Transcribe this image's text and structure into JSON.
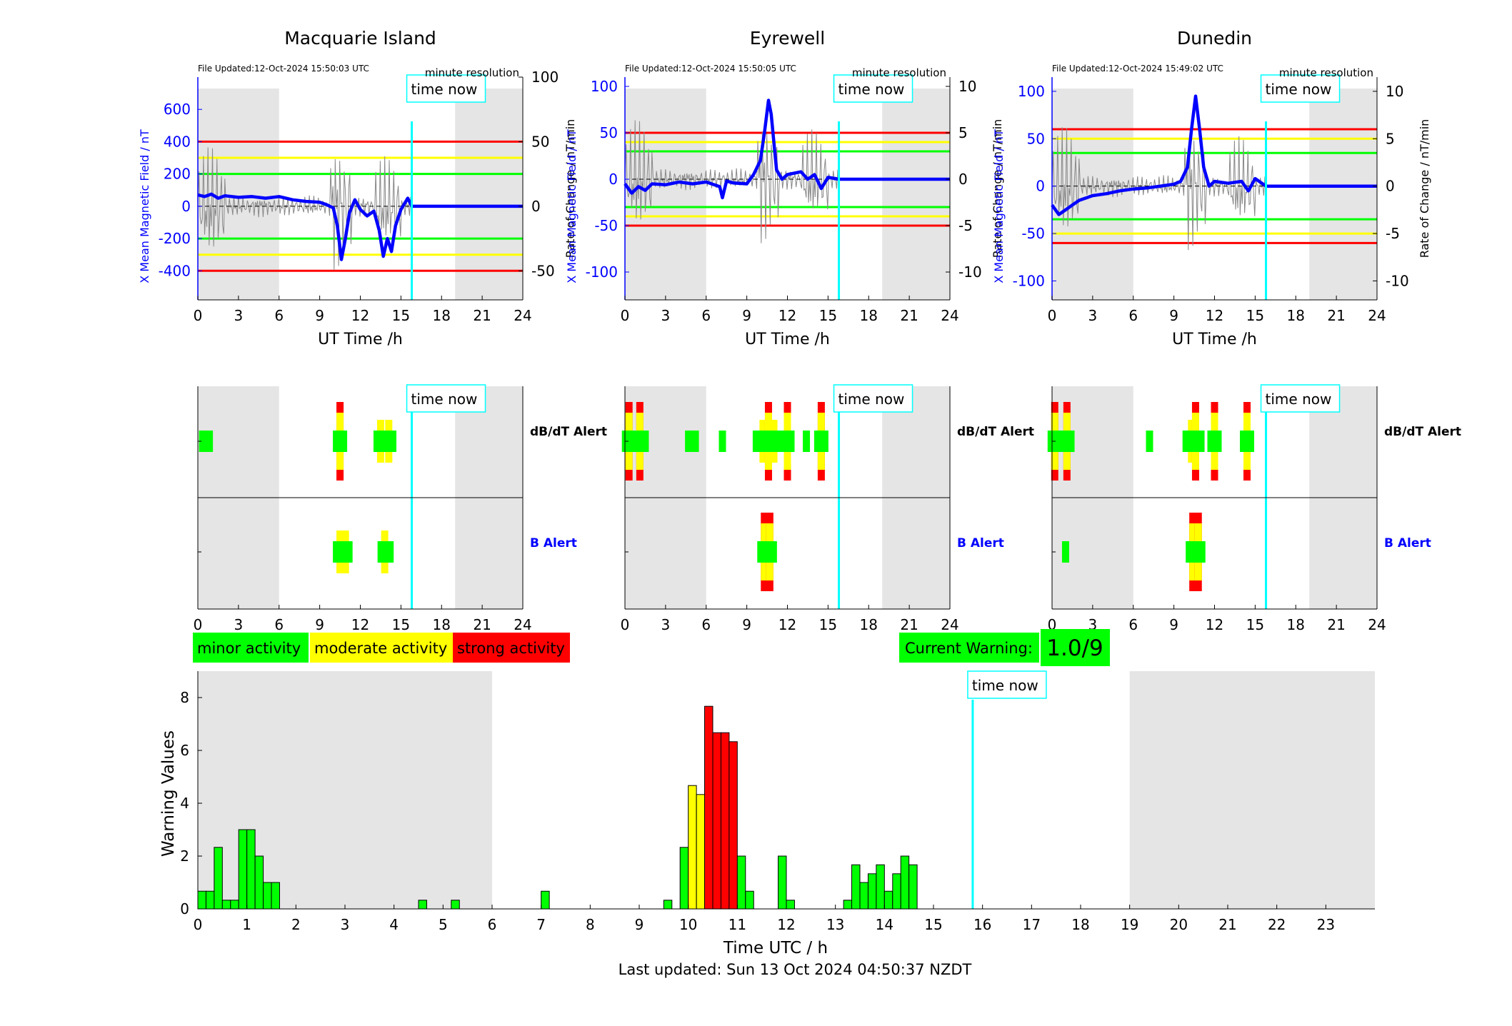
{
  "stations": [
    {
      "name": "Macquarie Island",
      "file_updated": "File Updated:12-Oct-2024 15:50:03 UTC",
      "resolution": "minute resolution",
      "left_ylabel": "X Mean Magnetic Field / nT",
      "right_ylabel": "Rate of Change / nT/min",
      "xlabel": "UT Time /h",
      "left_ylim": [
        -580,
        800
      ],
      "left_ticks": [
        -400,
        -200,
        0,
        200,
        400,
        600
      ],
      "right_ylim": [
        -72.5,
        100
      ],
      "right_ticks": [
        -50,
        0,
        50,
        100
      ],
      "thresholds": {
        "red": 400,
        "yellow": 300,
        "green": 200
      },
      "series_points": [
        [
          0,
          70
        ],
        [
          0.5,
          60
        ],
        [
          1,
          75
        ],
        [
          1.5,
          50
        ],
        [
          2,
          65
        ],
        [
          3,
          55
        ],
        [
          4,
          60
        ],
        [
          5,
          50
        ],
        [
          6,
          60
        ],
        [
          7,
          40
        ],
        [
          8,
          30
        ],
        [
          9,
          25
        ],
        [
          9.5,
          10
        ],
        [
          10,
          -10
        ],
        [
          10.3,
          -120
        ],
        [
          10.6,
          -330
        ],
        [
          10.9,
          -200
        ],
        [
          11.2,
          -40
        ],
        [
          11.6,
          40
        ],
        [
          12,
          -20
        ],
        [
          12.5,
          -60
        ],
        [
          13,
          -30
        ],
        [
          13.4,
          -150
        ],
        [
          13.7,
          -310
        ],
        [
          14,
          -200
        ],
        [
          14.3,
          -280
        ],
        [
          14.6,
          -120
        ],
        [
          15,
          -20
        ],
        [
          15.5,
          50
        ],
        [
          15.8,
          0
        ],
        [
          24,
          0
        ]
      ]
    },
    {
      "name": "Eyrewell",
      "file_updated": "File Updated:12-Oct-2024 15:50:05 UTC",
      "resolution": "minute resolution",
      "left_ylabel": "X Mean Magnetic Field / nT",
      "right_ylabel": "Rate of Change / nT/min",
      "xlabel": "UT Time /h",
      "left_ylim": [
        -130,
        110
      ],
      "left_ticks": [
        -100,
        -50,
        0,
        50,
        100
      ],
      "right_ylim": [
        -13,
        11
      ],
      "right_ticks": [
        -10,
        -5,
        0,
        5,
        10
      ],
      "thresholds": {
        "red": 50,
        "yellow": 40,
        "green": 30
      },
      "series_points": [
        [
          0,
          -5
        ],
        [
          0.5,
          -15
        ],
        [
          1,
          -8
        ],
        [
          1.5,
          -12
        ],
        [
          2,
          -5
        ],
        [
          3,
          -6
        ],
        [
          4,
          -3
        ],
        [
          5,
          -5
        ],
        [
          6,
          -3
        ],
        [
          7,
          -8
        ],
        [
          7.2,
          -20
        ],
        [
          7.5,
          -2
        ],
        [
          8,
          -4
        ],
        [
          9,
          -5
        ],
        [
          9.5,
          5
        ],
        [
          10,
          20
        ],
        [
          10.3,
          50
        ],
        [
          10.6,
          85
        ],
        [
          10.8,
          70
        ],
        [
          11,
          40
        ],
        [
          11.2,
          10
        ],
        [
          11.6,
          0
        ],
        [
          12,
          5
        ],
        [
          13,
          8
        ],
        [
          13.5,
          0
        ],
        [
          14,
          5
        ],
        [
          14.5,
          -10
        ],
        [
          15,
          2
        ],
        [
          15.8,
          0
        ],
        [
          24,
          0
        ]
      ]
    },
    {
      "name": "Dunedin",
      "file_updated": "File Updated:12-Oct-2024 15:49:02 UTC",
      "resolution": "minute resolution",
      "left_ylabel": "X Mean Magnetic Field / nT",
      "right_ylabel": "Rate of Change / nT/min",
      "xlabel": "UT Time /h",
      "left_ylim": [
        -120,
        115
      ],
      "left_ticks": [
        -100,
        -50,
        0,
        50,
        100
      ],
      "right_ylim": [
        -12,
        11.5
      ],
      "right_ticks": [
        -10,
        -5,
        0,
        5,
        10
      ],
      "thresholds": {
        "red": 60,
        "yellow": 50,
        "green": 35
      },
      "series_points": [
        [
          0,
          -20
        ],
        [
          0.5,
          -30
        ],
        [
          1,
          -25
        ],
        [
          1.5,
          -20
        ],
        [
          2,
          -15
        ],
        [
          3,
          -10
        ],
        [
          4,
          -8
        ],
        [
          5,
          -5
        ],
        [
          6,
          -3
        ],
        [
          7,
          -2
        ],
        [
          8,
          0
        ],
        [
          9,
          2
        ],
        [
          9.5,
          5
        ],
        [
          10,
          20
        ],
        [
          10.3,
          60
        ],
        [
          10.6,
          95
        ],
        [
          10.9,
          60
        ],
        [
          11.2,
          20
        ],
        [
          11.6,
          0
        ],
        [
          12,
          5
        ],
        [
          13,
          3
        ],
        [
          14,
          5
        ],
        [
          14.5,
          -5
        ],
        [
          15,
          8
        ],
        [
          15.8,
          0
        ],
        [
          24,
          0
        ]
      ]
    }
  ],
  "alert_panels": [
    {
      "dbdt_bars": [
        {
          "t": 0.35,
          "level": "green"
        },
        {
          "t": 0.85,
          "level": "green"
        },
        {
          "t": 10.5,
          "level": "red"
        },
        {
          "t": 13.5,
          "level": "yellow"
        },
        {
          "t": 13.8,
          "level": "green"
        },
        {
          "t": 14.1,
          "level": "yellow"
        },
        {
          "t": 14.4,
          "level": "green"
        }
      ],
      "b_bars": [
        {
          "t": 10.5,
          "level": "yellow"
        },
        {
          "t": 10.9,
          "level": "yellow"
        },
        {
          "t": 13.8,
          "level": "yellow"
        },
        {
          "t": 14.2,
          "level": "green"
        }
      ]
    },
    {
      "dbdt_bars": [
        {
          "t": 0.3,
          "level": "red"
        },
        {
          "t": 0.7,
          "level": "green"
        },
        {
          "t": 1.1,
          "level": "red"
        },
        {
          "t": 1.5,
          "level": "green"
        },
        {
          "t": 4.7,
          "level": "green"
        },
        {
          "t": 5.2,
          "level": "green"
        },
        {
          "t": 7.2,
          "level": "green"
        },
        {
          "t": 9.7,
          "level": "green"
        },
        {
          "t": 10.2,
          "level": "yellow"
        },
        {
          "t": 10.6,
          "level": "red"
        },
        {
          "t": 11.0,
          "level": "yellow"
        },
        {
          "t": 12.0,
          "level": "red"
        },
        {
          "t": 13.4,
          "level": "green"
        },
        {
          "t": 14.5,
          "level": "red"
        }
      ],
      "b_bars": [
        {
          "t": 10.3,
          "level": "red"
        },
        {
          "t": 10.7,
          "level": "red"
        }
      ]
    },
    {
      "dbdt_bars": [
        {
          "t": 0.2,
          "level": "red"
        },
        {
          "t": 0.6,
          "level": "green"
        },
        {
          "t": 1.1,
          "level": "red"
        },
        {
          "t": 1.4,
          "level": "green"
        },
        {
          "t": 7.2,
          "level": "green"
        },
        {
          "t": 9.9,
          "level": "green"
        },
        {
          "t": 10.3,
          "level": "yellow"
        },
        {
          "t": 10.6,
          "level": "red"
        },
        {
          "t": 11.0,
          "level": "green"
        },
        {
          "t": 12.0,
          "level": "red"
        },
        {
          "t": 14.4,
          "level": "red"
        }
      ],
      "b_bars": [
        {
          "t": 1.0,
          "level": "green"
        },
        {
          "t": 10.4,
          "level": "red"
        },
        {
          "t": 10.8,
          "level": "red"
        }
      ]
    }
  ],
  "alert_labels": {
    "dbdt": "dB/dT Alert",
    "b": "B Alert"
  },
  "time_now_label": "time now",
  "time_now_hours": 15.8,
  "night_shading": {
    "before": 6,
    "after": 19
  },
  "x_ticks": [
    0,
    3,
    6,
    9,
    12,
    15,
    18,
    21,
    24
  ],
  "legend": {
    "minor": "minor activity",
    "moderate": "moderate activity",
    "strong": "strong activity"
  },
  "current_warning": {
    "label": "Current Warning:",
    "value": "1.0/9"
  },
  "colors": {
    "green": "#00ff00",
    "yellow": "#ffff00",
    "red": "#ff0000",
    "cyan": "#00ffff",
    "blue": "#0000ff",
    "night": "#e5e5e5"
  },
  "chart_data": {
    "type": "bar",
    "xlabel": "Time UTC / h",
    "ylabel": "Warning Values",
    "ylim": [
      0,
      9
    ],
    "xlim": [
      0,
      24
    ],
    "y_ticks": [
      0,
      2,
      4,
      6,
      8
    ],
    "x_ticks": [
      0,
      1,
      2,
      3,
      4,
      5,
      6,
      7,
      8,
      9,
      10,
      11,
      12,
      13,
      14,
      15,
      16,
      17,
      18,
      19,
      20,
      21,
      22,
      23
    ],
    "bar_width_h": 0.1667,
    "bars": [
      {
        "t": 0.0,
        "v": 0.67,
        "level": "green"
      },
      {
        "t": 0.167,
        "v": 0.67,
        "level": "green"
      },
      {
        "t": 0.333,
        "v": 2.33,
        "level": "green"
      },
      {
        "t": 0.5,
        "v": 0.33,
        "level": "green"
      },
      {
        "t": 0.667,
        "v": 0.33,
        "level": "green"
      },
      {
        "t": 0.833,
        "v": 3.0,
        "level": "green"
      },
      {
        "t": 1.0,
        "v": 3.0,
        "level": "green"
      },
      {
        "t": 1.167,
        "v": 2.0,
        "level": "green"
      },
      {
        "t": 1.333,
        "v": 1.0,
        "level": "green"
      },
      {
        "t": 1.5,
        "v": 1.0,
        "level": "green"
      },
      {
        "t": 4.5,
        "v": 0.33,
        "level": "green"
      },
      {
        "t": 5.167,
        "v": 0.33,
        "level": "green"
      },
      {
        "t": 7.0,
        "v": 0.67,
        "level": "green"
      },
      {
        "t": 9.5,
        "v": 0.33,
        "level": "green"
      },
      {
        "t": 9.833,
        "v": 2.33,
        "level": "green"
      },
      {
        "t": 10.0,
        "v": 4.67,
        "level": "yellow"
      },
      {
        "t": 10.167,
        "v": 4.33,
        "level": "yellow"
      },
      {
        "t": 10.333,
        "v": 7.67,
        "level": "red"
      },
      {
        "t": 10.5,
        "v": 6.67,
        "level": "red"
      },
      {
        "t": 10.667,
        "v": 6.67,
        "level": "red"
      },
      {
        "t": 10.833,
        "v": 6.33,
        "level": "red"
      },
      {
        "t": 11.0,
        "v": 2.0,
        "level": "green"
      },
      {
        "t": 11.167,
        "v": 0.67,
        "level": "green"
      },
      {
        "t": 11.833,
        "v": 2.0,
        "level": "green"
      },
      {
        "t": 12.0,
        "v": 0.33,
        "level": "green"
      },
      {
        "t": 13.167,
        "v": 0.33,
        "level": "green"
      },
      {
        "t": 13.333,
        "v": 1.67,
        "level": "green"
      },
      {
        "t": 13.5,
        "v": 1.0,
        "level": "green"
      },
      {
        "t": 13.667,
        "v": 1.33,
        "level": "green"
      },
      {
        "t": 13.833,
        "v": 1.67,
        "level": "green"
      },
      {
        "t": 14.0,
        "v": 0.67,
        "level": "green"
      },
      {
        "t": 14.167,
        "v": 1.33,
        "level": "green"
      },
      {
        "t": 14.333,
        "v": 2.0,
        "level": "green"
      },
      {
        "t": 14.5,
        "v": 1.67,
        "level": "green"
      }
    ],
    "night_before": 6,
    "night_after": 19,
    "time_now": 15.8
  },
  "footer": "Last updated: Sun 13 Oct 2024 04:50:37 NZDT"
}
